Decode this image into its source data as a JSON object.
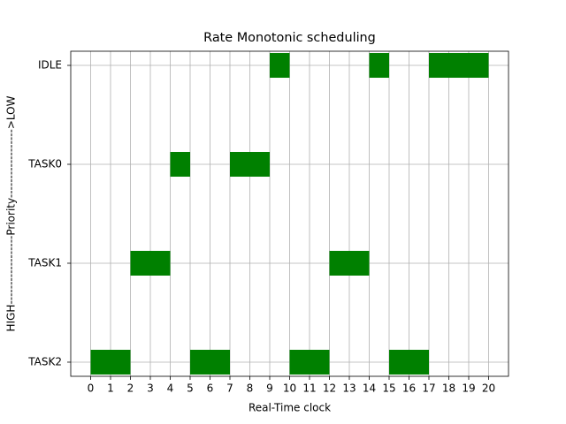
{
  "chart_data": {
    "type": "gantt",
    "title": "Rate Monotonic scheduling",
    "x_label": "Real-Time clock",
    "y_label": "HIGH------------------Priority------------------>LOW",
    "categories": [
      "TASK2",
      "TASK1",
      "TASK0",
      "IDLE"
    ],
    "series": [
      {
        "name": "TASK2",
        "color": "#008000",
        "segments": [
          [
            0,
            2
          ],
          [
            5,
            7
          ],
          [
            10,
            12
          ],
          [
            15,
            17
          ]
        ]
      },
      {
        "name": "TASK1",
        "color": "#008000",
        "segments": [
          [
            2,
            4
          ],
          [
            12,
            14
          ]
        ]
      },
      {
        "name": "TASK0",
        "color": "#008000",
        "segments": [
          [
            4,
            5
          ],
          [
            7,
            9
          ]
        ]
      },
      {
        "name": "IDLE",
        "color": "#008000",
        "segments": [
          [
            9,
            10
          ],
          [
            14,
            15
          ],
          [
            17,
            20
          ]
        ]
      }
    ],
    "xlim": [
      -1,
      21
    ],
    "xticks": [
      0,
      1,
      2,
      3,
      4,
      5,
      6,
      7,
      8,
      9,
      10,
      11,
      12,
      13,
      14,
      15,
      16,
      17,
      18,
      19,
      20
    ],
    "grid": true
  }
}
